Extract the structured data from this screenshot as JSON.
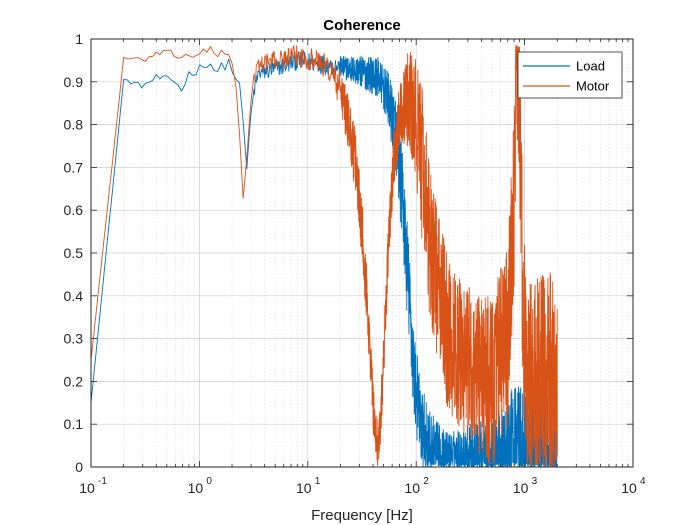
{
  "chart_data": {
    "type": "line",
    "title": "Coherence",
    "xlabel": "Frequency [Hz]",
    "ylabel": "",
    "xscale": "log",
    "xlim": [
      0.1,
      10000
    ],
    "ylim": [
      0,
      1
    ],
    "grid": "on (major and minor)",
    "legend_position": "top-right",
    "x_ticks": [
      {
        "base": "10",
        "exp": "-1"
      },
      {
        "base": "10",
        "exp": "0"
      },
      {
        "base": "10",
        "exp": "1"
      },
      {
        "base": "10",
        "exp": "2"
      },
      {
        "base": "10",
        "exp": "3"
      },
      {
        "base": "10",
        "exp": "4"
      }
    ],
    "y_ticks": [
      "0",
      "0.1",
      "0.2",
      "0.3",
      "0.4",
      "0.5",
      "0.6",
      "0.7",
      "0.8",
      "0.9",
      "1"
    ],
    "series": [
      {
        "name": "Load",
        "color": "#0072bd",
        "anchors": [
          [
            0.1,
            0.15
          ],
          [
            0.2,
            0.905
          ],
          [
            0.3,
            0.89
          ],
          [
            0.4,
            0.91
          ],
          [
            0.6,
            0.9
          ],
          [
            0.7,
            0.88
          ],
          [
            0.8,
            0.92
          ],
          [
            1.0,
            0.93
          ],
          [
            1.2,
            0.95
          ],
          [
            1.5,
            0.92
          ],
          [
            1.8,
            0.95
          ],
          [
            2.0,
            0.93
          ],
          [
            2.3,
            0.9
          ],
          [
            2.6,
            0.78
          ],
          [
            2.8,
            0.65
          ],
          [
            3.0,
            0.85
          ],
          [
            3.5,
            0.92
          ],
          [
            5,
            0.93
          ],
          [
            8,
            0.95
          ],
          [
            15,
            0.94
          ],
          [
            25,
            0.93
          ],
          [
            35,
            0.92
          ],
          [
            45,
            0.91
          ],
          [
            55,
            0.86
          ],
          [
            65,
            0.78
          ],
          [
            75,
            0.62
          ],
          [
            85,
            0.42
          ],
          [
            95,
            0.22
          ],
          [
            110,
            0.1
          ],
          [
            130,
            0.05
          ],
          [
            170,
            0.03
          ],
          [
            250,
            0.03
          ],
          [
            400,
            0.03
          ],
          [
            700,
            0.04
          ],
          [
            850,
            0.08
          ],
          [
            950,
            0.03
          ],
          [
            1300,
            0.03
          ],
          [
            2000,
            0.04
          ]
        ],
        "noise": [
          [
            0.1,
            0.0
          ],
          [
            3.5,
            0.02
          ],
          [
            20,
            0.025
          ],
          [
            50,
            0.05
          ],
          [
            80,
            0.12
          ],
          [
            110,
            0.1
          ],
          [
            200,
            0.05
          ],
          [
            600,
            0.1
          ],
          [
            2000,
            0.22
          ]
        ]
      },
      {
        "name": "Motor",
        "color": "#d95319",
        "anchors": [
          [
            0.1,
            0.25
          ],
          [
            0.2,
            0.955
          ],
          [
            0.3,
            0.95
          ],
          [
            0.4,
            0.965
          ],
          [
            0.6,
            0.965
          ],
          [
            0.7,
            0.955
          ],
          [
            0.8,
            0.965
          ],
          [
            1.0,
            0.965
          ],
          [
            1.3,
            0.97
          ],
          [
            1.6,
            0.96
          ],
          [
            1.9,
            0.965
          ],
          [
            2.1,
            0.93
          ],
          [
            2.3,
            0.85
          ],
          [
            2.5,
            0.6
          ],
          [
            2.7,
            0.7
          ],
          [
            3.0,
            0.88
          ],
          [
            3.5,
            0.94
          ],
          [
            5,
            0.95
          ],
          [
            8,
            0.96
          ],
          [
            12,
            0.95
          ],
          [
            16,
            0.93
          ],
          [
            20,
            0.88
          ],
          [
            24,
            0.8
          ],
          [
            28,
            0.7
          ],
          [
            32,
            0.55
          ],
          [
            36,
            0.35
          ],
          [
            40,
            0.15
          ],
          [
            43,
            0.05
          ],
          [
            46,
            0.08
          ],
          [
            50,
            0.25
          ],
          [
            55,
            0.5
          ],
          [
            62,
            0.72
          ],
          [
            70,
            0.82
          ],
          [
            80,
            0.86
          ],
          [
            90,
            0.84
          ],
          [
            100,
            0.8
          ],
          [
            115,
            0.7
          ],
          [
            130,
            0.55
          ],
          [
            160,
            0.42
          ],
          [
            200,
            0.3
          ],
          [
            300,
            0.24
          ],
          [
            500,
            0.2
          ],
          [
            700,
            0.3
          ],
          [
            780,
            0.55
          ],
          [
            840,
            0.85
          ],
          [
            880,
            0.93
          ],
          [
            920,
            0.7
          ],
          [
            980,
            0.3
          ],
          [
            1100,
            0.18
          ],
          [
            1500,
            0.2
          ],
          [
            2000,
            0.22
          ]
        ],
        "noise": [
          [
            0.1,
            0.0
          ],
          [
            3.5,
            0.02
          ],
          [
            15,
            0.03
          ],
          [
            30,
            0.08
          ],
          [
            45,
            0.06
          ],
          [
            70,
            0.07
          ],
          [
            110,
            0.18
          ],
          [
            200,
            0.18
          ],
          [
            500,
            0.2
          ],
          [
            1200,
            0.25
          ],
          [
            2000,
            0.25
          ]
        ]
      }
    ]
  }
}
